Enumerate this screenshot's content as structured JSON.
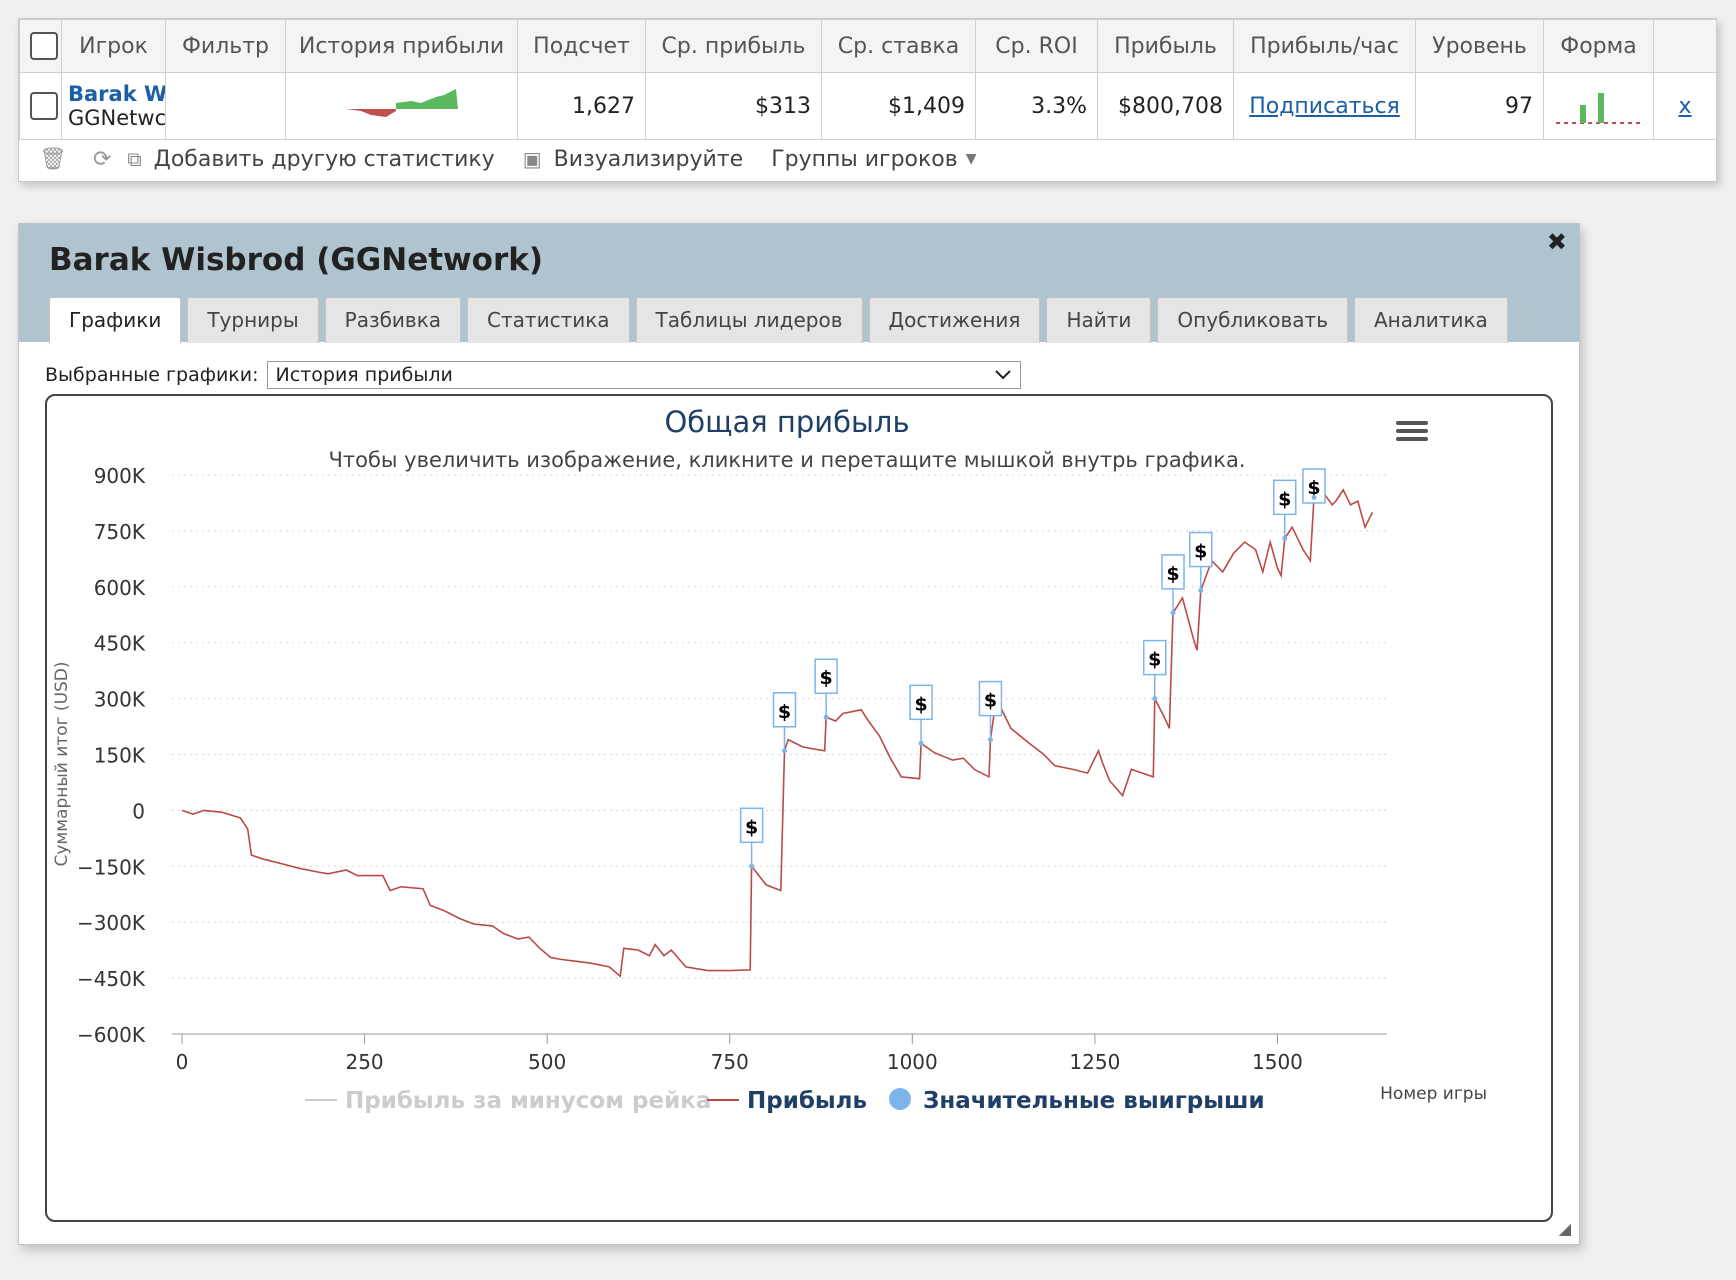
{
  "stats_table": {
    "headers": [
      "",
      "Игрок",
      "Фильтр",
      "История прибыли",
      "Подсчет",
      "Ср. прибыль",
      "Ср. ставка",
      "Ср. ROI",
      "Прибыль",
      "Прибыль/час",
      "Уровень",
      "Форма",
      ""
    ],
    "row": {
      "player_name": "Barak W",
      "player_site": "GGNetwc",
      "count": "1,627",
      "avg_profit": "$313",
      "avg_stake": "$1,409",
      "avg_roi": "3.3%",
      "profit": "$800,708",
      "profit_per_hour": "Подписаться",
      "level": "97",
      "remove": "x"
    }
  },
  "toolbar": {
    "add_stat_label": "Добавить другую статистику",
    "visualize_label": "Визуализируйте",
    "player_groups_label": "Группы игроков"
  },
  "player_panel": {
    "title": "Barak Wisbrod (GGNetwork)",
    "close": "✖",
    "tabs": [
      "Графики",
      "Турниры",
      "Разбивка",
      "Статистика",
      "Таблицы лидеров",
      "Достижения",
      "Найти",
      "Опубликовать",
      "Аналитика"
    ],
    "selected_label": "Выбранные графики:",
    "selected_value": "История прибыли"
  },
  "chart_data": {
    "type": "line",
    "title": "Общая прибыль",
    "subtitle": "Чтобы увеличить изображение, кликните и перетащите мышкой внутрь графика.",
    "xlabel": "Номер игры",
    "ylabel": "Суммарный итог (USD)",
    "xlim": [
      0,
      1650
    ],
    "ylim": [
      -600000,
      900000
    ],
    "x_ticks": [
      0,
      250,
      500,
      750,
      1000,
      1250,
      1500
    ],
    "y_ticks": [
      900000,
      750000,
      600000,
      450000,
      300000,
      150000,
      0,
      -150000,
      -300000,
      -450000,
      -600000
    ],
    "y_tick_labels": [
      "900K",
      "750K",
      "600K",
      "450K",
      "300K",
      "150K",
      "0",
      "−150K",
      "−300K",
      "−450K",
      "−600K"
    ],
    "legend": [
      {
        "name": "Прибыль за минусом рейка",
        "color": "#cccccc",
        "kind": "line",
        "enabled": false
      },
      {
        "name": "Прибыль",
        "color": "#b94a48",
        "kind": "line",
        "enabled": true
      },
      {
        "name": "Значительные выигрыши",
        "color": "#7cb5ec",
        "kind": "dot",
        "enabled": true
      }
    ],
    "series": [
      {
        "name": "Прибыль",
        "color": "#b94a48",
        "points": [
          [
            0,
            0
          ],
          [
            15,
            -10000
          ],
          [
            30,
            0
          ],
          [
            55,
            -5000
          ],
          [
            80,
            -20000
          ],
          [
            90,
            -50000
          ],
          [
            95,
            -120000
          ],
          [
            110,
            -130000
          ],
          [
            140,
            -145000
          ],
          [
            160,
            -155000
          ],
          [
            185,
            -165000
          ],
          [
            200,
            -170000
          ],
          [
            225,
            -160000
          ],
          [
            240,
            -175000
          ],
          [
            275,
            -175000
          ],
          [
            285,
            -215000
          ],
          [
            300,
            -205000
          ],
          [
            330,
            -210000
          ],
          [
            340,
            -255000
          ],
          [
            360,
            -270000
          ],
          [
            380,
            -290000
          ],
          [
            400,
            -305000
          ],
          [
            425,
            -310000
          ],
          [
            440,
            -330000
          ],
          [
            460,
            -345000
          ],
          [
            475,
            -340000
          ],
          [
            490,
            -370000
          ],
          [
            505,
            -395000
          ],
          [
            520,
            -400000
          ],
          [
            540,
            -405000
          ],
          [
            560,
            -410000
          ],
          [
            585,
            -420000
          ],
          [
            600,
            -445000
          ],
          [
            605,
            -370000
          ],
          [
            625,
            -375000
          ],
          [
            640,
            -390000
          ],
          [
            648,
            -360000
          ],
          [
            660,
            -390000
          ],
          [
            670,
            -375000
          ],
          [
            690,
            -420000
          ],
          [
            720,
            -430000
          ],
          [
            750,
            -430000
          ],
          [
            778,
            -428000
          ],
          [
            780,
            -150000
          ],
          [
            800,
            -200000
          ],
          [
            820,
            -215000
          ],
          [
            825,
            160000
          ],
          [
            830,
            190000
          ],
          [
            850,
            170000
          ],
          [
            880,
            160000
          ],
          [
            882,
            250000
          ],
          [
            895,
            240000
          ],
          [
            905,
            260000
          ],
          [
            930,
            270000
          ],
          [
            940,
            240000
          ],
          [
            955,
            200000
          ],
          [
            970,
            140000
          ],
          [
            985,
            90000
          ],
          [
            1010,
            85000
          ],
          [
            1012,
            180000
          ],
          [
            1030,
            155000
          ],
          [
            1055,
            135000
          ],
          [
            1070,
            140000
          ],
          [
            1085,
            110000
          ],
          [
            1105,
            90000
          ],
          [
            1107,
            190000
          ],
          [
            1115,
            300000
          ],
          [
            1135,
            220000
          ],
          [
            1160,
            180000
          ],
          [
            1180,
            150000
          ],
          [
            1195,
            120000
          ],
          [
            1220,
            110000
          ],
          [
            1240,
            100000
          ],
          [
            1255,
            160000
          ],
          [
            1260,
            130000
          ],
          [
            1270,
            80000
          ],
          [
            1288,
            40000
          ],
          [
            1300,
            110000
          ],
          [
            1315,
            100000
          ],
          [
            1330,
            90000
          ],
          [
            1332,
            300000
          ],
          [
            1345,
            250000
          ],
          [
            1352,
            220000
          ],
          [
            1357,
            530000
          ],
          [
            1370,
            570000
          ],
          [
            1385,
            460000
          ],
          [
            1390,
            430000
          ],
          [
            1395,
            590000
          ],
          [
            1410,
            670000
          ],
          [
            1425,
            640000
          ],
          [
            1440,
            690000
          ],
          [
            1455,
            720000
          ],
          [
            1470,
            700000
          ],
          [
            1480,
            640000
          ],
          [
            1490,
            720000
          ],
          [
            1500,
            650000
          ],
          [
            1505,
            630000
          ],
          [
            1510,
            730000
          ],
          [
            1520,
            760000
          ],
          [
            1535,
            700000
          ],
          [
            1545,
            670000
          ],
          [
            1550,
            840000
          ],
          [
            1560,
            860000
          ],
          [
            1575,
            820000
          ],
          [
            1580,
            830000
          ],
          [
            1590,
            860000
          ],
          [
            1600,
            820000
          ],
          [
            1610,
            830000
          ],
          [
            1620,
            760000
          ],
          [
            1630,
            800000
          ]
        ]
      }
    ],
    "significant_wins": [
      780,
      825,
      882,
      1012,
      1107,
      1332,
      1357,
      1395,
      1510,
      1550
    ],
    "significant_win_marker": "$"
  }
}
